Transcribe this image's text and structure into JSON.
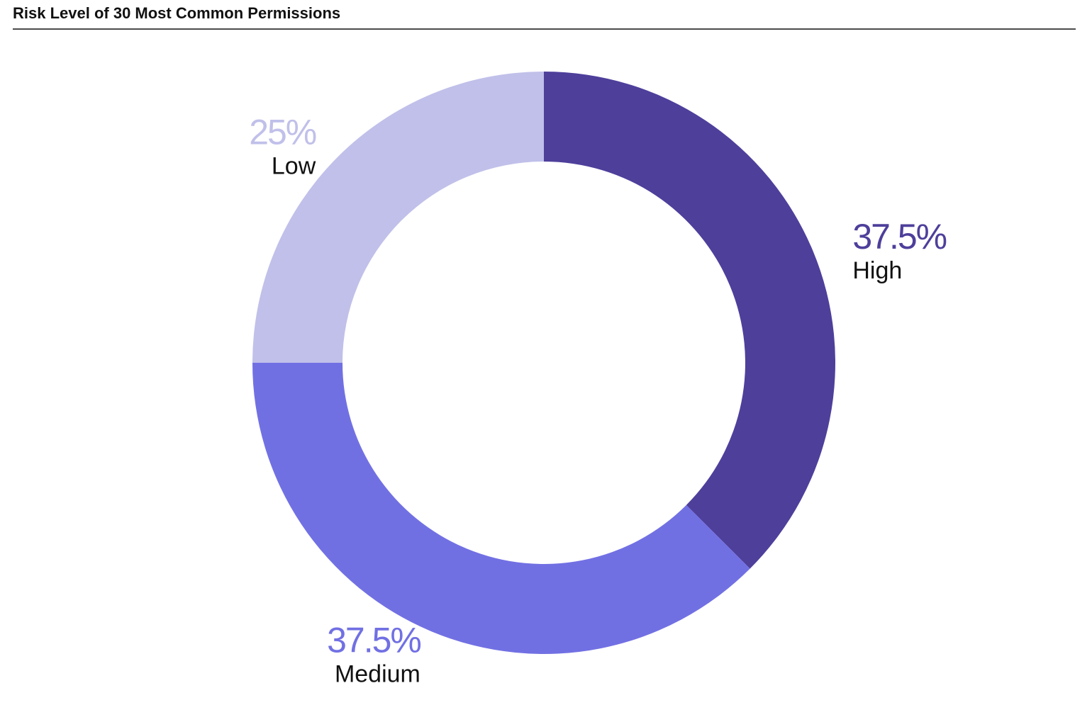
{
  "chart_data": {
    "type": "donut",
    "title": "Risk Level of 30 Most Common Permissions",
    "categories": [
      "High",
      "Medium",
      "Low"
    ],
    "values": [
      37.5,
      37.5,
      25
    ],
    "value_labels": [
      "37.5%",
      "37.5%",
      "25%"
    ],
    "colors": [
      "#4e3f9b",
      "#7170e3",
      "#c0c0ea"
    ]
  }
}
